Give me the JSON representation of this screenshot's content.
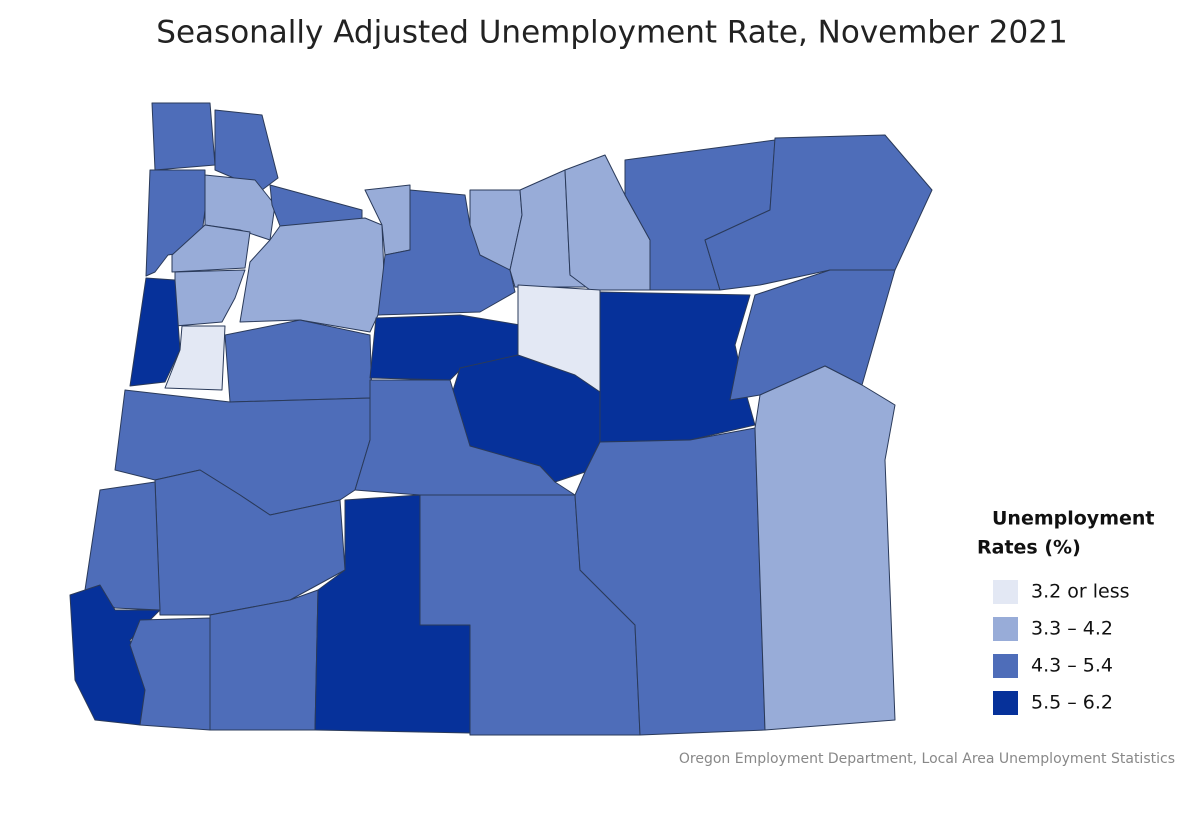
{
  "title": "Seasonally Adjusted Unemployment Rate, November 2021",
  "legend": {
    "title_lines": [
      "Unemployment",
      "Rates (%)"
    ],
    "items": [
      {
        "label": "3.2 or less",
        "color": "#e3e8f4"
      },
      {
        "label": "3.3 – 4.2",
        "color": "#98acd8"
      },
      {
        "label": "4.3 – 5.4",
        "color": "#4e6db9"
      },
      {
        "label": "5.5 – 6.2",
        "color": "#06319a"
      }
    ]
  },
  "source": "Oregon Employment Department, Local Area Unemployment Statistics"
}
